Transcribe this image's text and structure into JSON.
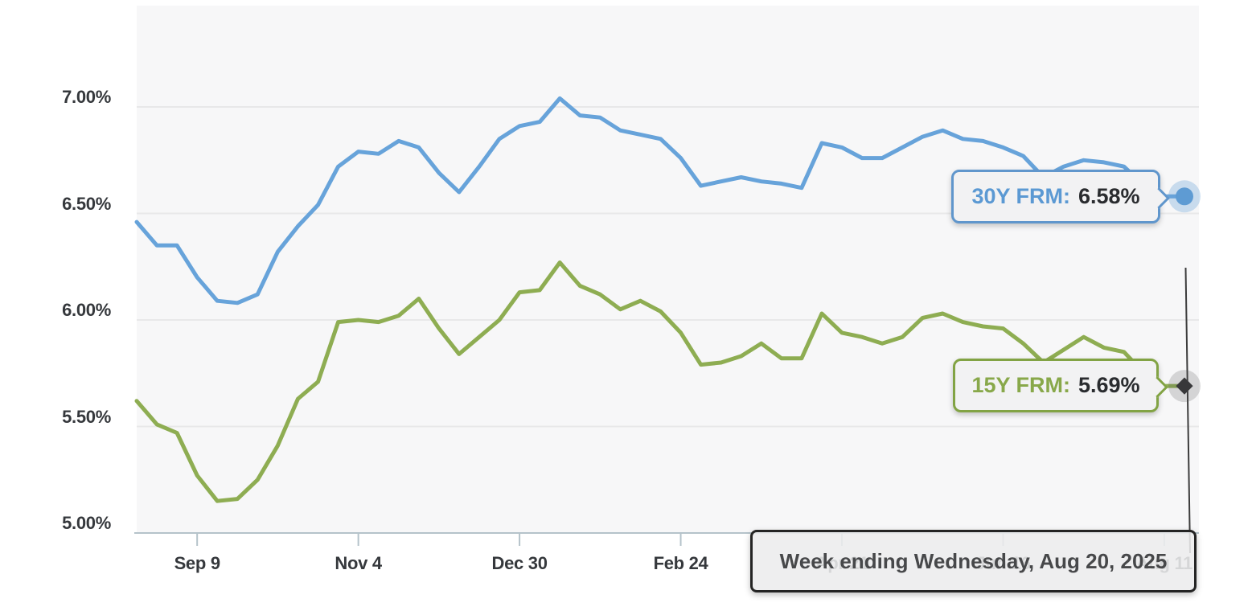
{
  "chart_data": {
    "type": "line",
    "title": "",
    "grid": true,
    "legend_position": "none",
    "x_axis": {
      "tick_labels": [
        "Sep 9",
        "Nov 4",
        "Dec 30",
        "Feb 24",
        "Apr 21",
        "Jun 16",
        "Aug 11"
      ],
      "tick_indices": [
        3,
        11,
        19,
        27,
        35,
        43,
        51
      ]
    },
    "y_axis": {
      "tick_labels": [
        "7.00%",
        "6.50%",
        "6.00%",
        "5.50%",
        "5.00%"
      ],
      "tick_values": [
        7.0,
        6.5,
        6.0,
        5.5,
        5.0
      ],
      "unit": "%"
    },
    "ylim": [
      5.0,
      7.48
    ],
    "series": [
      {
        "name": "30Y FRM",
        "color": "#67a3da",
        "values": [
          6.46,
          6.35,
          6.35,
          6.2,
          6.09,
          6.08,
          6.12,
          6.32,
          6.44,
          6.54,
          6.72,
          6.79,
          6.78,
          6.84,
          6.81,
          6.69,
          6.6,
          6.72,
          6.85,
          6.91,
          6.93,
          7.04,
          6.96,
          6.95,
          6.89,
          6.87,
          6.85,
          6.76,
          6.63,
          6.65,
          6.67,
          6.65,
          6.64,
          6.62,
          6.83,
          6.81,
          6.76,
          6.76,
          6.81,
          6.86,
          6.89,
          6.85,
          6.84,
          6.81,
          6.77,
          6.67,
          6.72,
          6.75,
          6.74,
          6.72,
          6.63,
          6.58,
          6.58
        ]
      },
      {
        "name": "15Y FRM",
        "color": "#8ead52",
        "values": [
          5.62,
          5.51,
          5.47,
          5.27,
          5.15,
          5.16,
          5.25,
          5.41,
          5.63,
          5.71,
          5.99,
          6.0,
          5.99,
          6.02,
          6.1,
          5.96,
          5.84,
          5.92,
          6.0,
          6.13,
          6.14,
          6.27,
          6.16,
          6.12,
          6.05,
          6.09,
          6.04,
          5.94,
          5.79,
          5.8,
          5.83,
          5.89,
          5.82,
          5.82,
          6.03,
          5.94,
          5.92,
          5.89,
          5.92,
          6.01,
          6.03,
          5.99,
          5.97,
          5.96,
          5.89,
          5.8,
          5.86,
          5.92,
          5.87,
          5.85,
          5.75,
          5.69,
          5.69
        ]
      }
    ]
  },
  "callouts": {
    "y30": {
      "label": "30Y FRM:",
      "value": "6.58%"
    },
    "y15": {
      "label": "15Y FRM:",
      "value": "5.69%"
    },
    "date_text": "Week ending Wednesday, Aug 20, 2025"
  },
  "colors": {
    "line_30y": "#67a3da",
    "line_15y": "#8ead52",
    "value_text": "#2a2c2f",
    "axis_label": "#35383c",
    "plot_bg": "#f7f7f8",
    "gridline": "#e8e8e9",
    "axis_line": "#b5c3ca",
    "cursor": "#3c3c3c",
    "marker_dot": "#5e9bd3",
    "marker_dot_halo": "rgba(104,162,216,0.32)",
    "marker_diamond": "#38383a",
    "marker_diamond_halo": "rgba(90,90,90,0.22)"
  }
}
